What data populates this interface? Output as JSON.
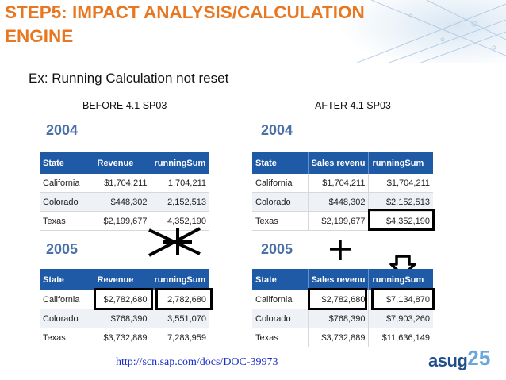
{
  "slide": {
    "title": "STEP5: IMPACT ANALYSIS/CALCULATION ENGINE",
    "subtitle": "Ex: Running Calculation not reset",
    "before_caption": "BEFORE 4.1 SP03",
    "after_caption": "AFTER 4.1 SP03",
    "link": "http://scn.sap.com/docs/DOC-39973",
    "logo_text": "asug",
    "logo_number": "25"
  },
  "before": {
    "y2004": {
      "year": "2004",
      "headers": [
        "State",
        "Revenue",
        "runningSum"
      ],
      "rows": [
        [
          "California",
          "$1,704,211",
          "1,704,211"
        ],
        [
          "Colorado",
          "$448,302",
          "2,152,513"
        ],
        [
          "Texas",
          "$2,199,677",
          "4,352,190"
        ]
      ]
    },
    "y2005": {
      "year": "2005",
      "headers": [
        "State",
        "Revenue",
        "runningSum"
      ],
      "rows": [
        [
          "California",
          "$2,782,680",
          "2,782,680"
        ],
        [
          "Colorado",
          "$768,390",
          "3,551,070"
        ],
        [
          "Texas",
          "$3,732,889",
          "7,283,959"
        ]
      ]
    }
  },
  "after": {
    "y2004": {
      "year": "2004",
      "headers": [
        "State",
        "Sales revenu",
        "runningSum"
      ],
      "rows": [
        [
          "California",
          "$1,704,211",
          "$1,704,211"
        ],
        [
          "Colorado",
          "$448,302",
          "$2,152,513"
        ],
        [
          "Texas",
          "$2,199,677",
          "$4,352,190"
        ]
      ]
    },
    "y2005": {
      "year": "2005",
      "headers": [
        "State",
        "Sales revenu",
        "runningSum"
      ],
      "rows": [
        [
          "California",
          "$2,782,680",
          "$7,134,870"
        ],
        [
          "Colorado",
          "$768,390",
          "$7,903,260"
        ],
        [
          "Texas",
          "$3,732,889",
          "$11,636,149"
        ]
      ]
    }
  },
  "colors": {
    "title": "#e87722",
    "table_header": "#1f5aa6",
    "year_label": "#4a72a8",
    "link": "#1a2dc8"
  }
}
